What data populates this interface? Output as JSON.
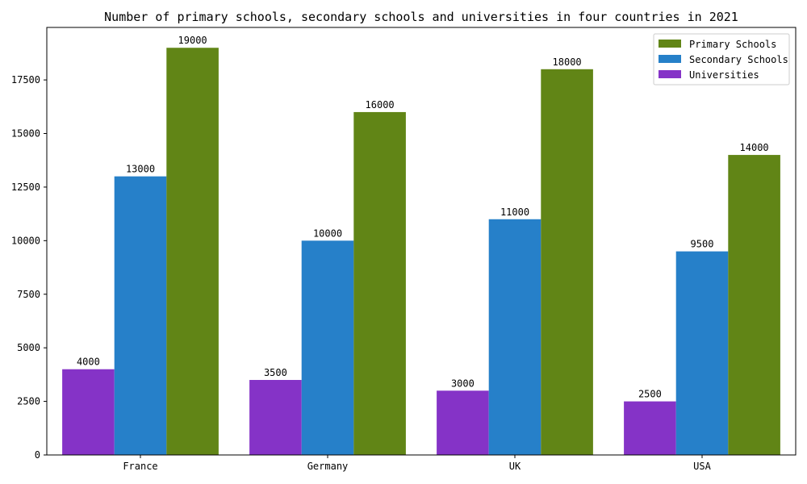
{
  "chart_data": {
    "type": "bar",
    "title": "Number of primary schools, secondary schools and universities in four countries in 2021",
    "xlabel": "",
    "ylabel": "",
    "categories": [
      "France",
      "Germany",
      "UK",
      "USA"
    ],
    "series": [
      {
        "name": "Universities",
        "color": "#8533c7",
        "values": [
          4000,
          3500,
          3000,
          2500
        ]
      },
      {
        "name": "Secondary Schools",
        "color": "#2680c9",
        "values": [
          13000,
          10000,
          11000,
          9500
        ]
      },
      {
        "name": "Primary Schools",
        "color": "#618516",
        "values": [
          19000,
          16000,
          18000,
          14000
        ]
      }
    ],
    "legend_order": [
      "Primary Schools",
      "Secondary Schools",
      "Universities"
    ],
    "ylim": [
      0,
      19950
    ],
    "yticks": [
      0,
      2500,
      5000,
      7500,
      10000,
      12500,
      15000,
      17500
    ],
    "legend_position": "top-right",
    "grid": false
  }
}
